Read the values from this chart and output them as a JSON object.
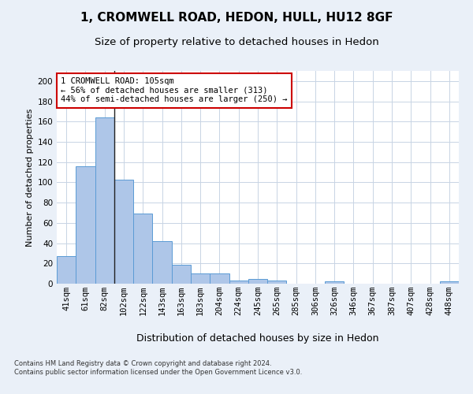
{
  "title1": "1, CROMWELL ROAD, HEDON, HULL, HU12 8GF",
  "title2": "Size of property relative to detached houses in Hedon",
  "xlabel": "Distribution of detached houses by size in Hedon",
  "ylabel": "Number of detached properties",
  "bar_labels": [
    "41sqm",
    "61sqm",
    "82sqm",
    "102sqm",
    "122sqm",
    "143sqm",
    "163sqm",
    "183sqm",
    "204sqm",
    "224sqm",
    "245sqm",
    "265sqm",
    "285sqm",
    "306sqm",
    "326sqm",
    "346sqm",
    "367sqm",
    "387sqm",
    "407sqm",
    "428sqm",
    "448sqm"
  ],
  "bar_values": [
    27,
    116,
    164,
    103,
    69,
    42,
    19,
    10,
    10,
    3,
    5,
    3,
    0,
    0,
    2,
    0,
    0,
    0,
    0,
    0,
    2
  ],
  "bar_color": "#aec6e8",
  "bar_edge_color": "#5b9bd5",
  "vline_x": 2.5,
  "annotation_text": "1 CROMWELL ROAD: 105sqm\n← 56% of detached houses are smaller (313)\n44% of semi-detached houses are larger (250) →",
  "annotation_box_color": "#ffffff",
  "annotation_box_edge": "#cc0000",
  "ylim": [
    0,
    210
  ],
  "yticks": [
    0,
    20,
    40,
    60,
    80,
    100,
    120,
    140,
    160,
    180,
    200
  ],
  "bg_color": "#eaf0f8",
  "plot_bg": "#ffffff",
  "footer": "Contains HM Land Registry data © Crown copyright and database right 2024.\nContains public sector information licensed under the Open Government Licence v3.0.",
  "grid_color": "#c8d4e4",
  "title1_fontsize": 11,
  "title2_fontsize": 9.5,
  "ylabel_fontsize": 8,
  "xlabel_fontsize": 9,
  "tick_fontsize": 7.5,
  "annotation_fontsize": 7.5,
  "footer_fontsize": 6
}
